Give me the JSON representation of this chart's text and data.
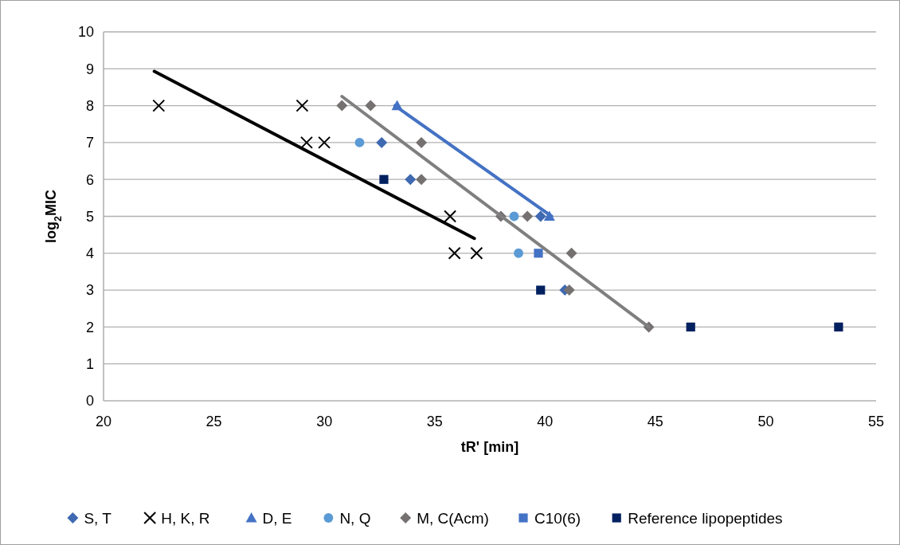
{
  "chart_data": {
    "type": "scatter",
    "xlabel": "tR' [min]",
    "ylabel": "log$_{2}$MIC",
    "xlim": [
      20,
      55
    ],
    "xticks": [
      20,
      25,
      30,
      35,
      40,
      45,
      50,
      55
    ],
    "ylim": [
      0,
      10
    ],
    "yticks": [
      0,
      1,
      2,
      3,
      4,
      5,
      6,
      7,
      8,
      9,
      10
    ],
    "grid": "y",
    "legend": "bottom",
    "series": [
      {
        "name": "S, T",
        "color": "#3f69b0",
        "marker": "diamond",
        "x": [
          32.6,
          33.9,
          39.8,
          40.9
        ],
        "values": [
          7,
          6,
          5,
          3
        ]
      },
      {
        "name": "H, K, R",
        "color": "#000000",
        "marker": "cross",
        "x": [
          22.5,
          29.0,
          29.2,
          30.0,
          35.7,
          35.9,
          36.9
        ],
        "values": [
          8,
          8,
          7,
          7,
          5,
          4,
          4
        ]
      },
      {
        "name": "D, E",
        "color": "#4472c4",
        "marker": "triangle",
        "x": [
          33.3,
          40.2
        ],
        "values": [
          8,
          5
        ]
      },
      {
        "name": "N, Q",
        "color": "#5b9bd5",
        "marker": "circle",
        "x": [
          31.6,
          38.6,
          38.8
        ],
        "values": [
          7,
          5,
          4
        ]
      },
      {
        "name": "M, C(Acm)",
        "color": "#767171",
        "marker": "diamond",
        "x": [
          30.8,
          32.1,
          34.4,
          34.4,
          38.0,
          39.2,
          41.2,
          41.1,
          44.7
        ],
        "values": [
          8,
          8,
          7,
          6,
          5,
          5,
          4,
          3,
          2
        ]
      },
      {
        "name": "C10(6)",
        "color": "#4472c4",
        "marker": "square",
        "x": [
          39.7
        ],
        "values": [
          4
        ]
      },
      {
        "name": "Reference lipopeptides",
        "color": "#002060",
        "marker": "square",
        "x": [
          32.7,
          39.8,
          46.6,
          53.3
        ],
        "values": [
          6,
          3,
          2,
          2
        ]
      },
      {
        "type": "line",
        "color": "#000000",
        "marker": "none",
        "x": [
          22.3,
          36.8
        ],
        "values": [
          8.93,
          4.4
        ]
      },
      {
        "type": "line",
        "color": "#7f7f7f",
        "marker": "none",
        "x": [
          30.8,
          44.7
        ],
        "values": [
          8.25,
          2
        ]
      },
      {
        "type": "line",
        "color": "#4472c4",
        "marker": "none",
        "x": [
          33.2,
          40.3
        ],
        "values": [
          8,
          5
        ]
      }
    ]
  }
}
